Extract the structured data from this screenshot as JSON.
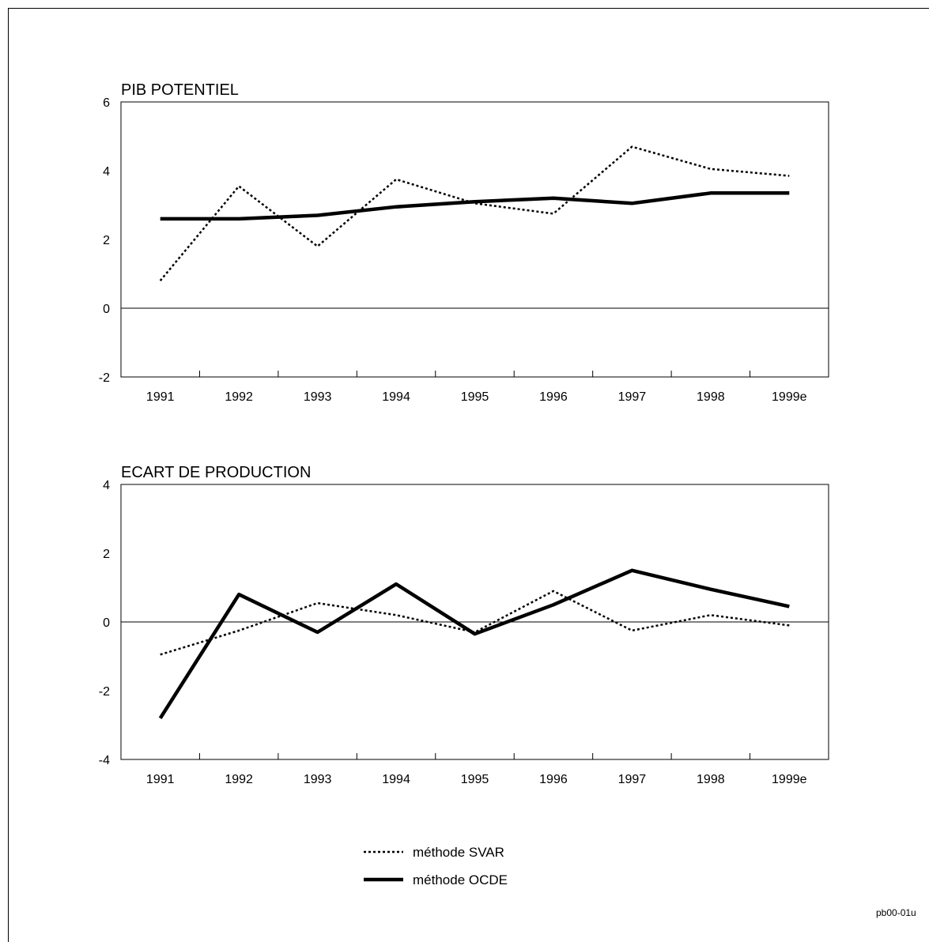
{
  "figure_code": "pb00-01u",
  "legend": [
    {
      "label": "méthode SVAR",
      "style": "dotted"
    },
    {
      "label": "méthode OCDE",
      "style": "solid"
    }
  ],
  "colors": {
    "line": "#000000",
    "background": "#ffffff"
  },
  "chart_data": [
    {
      "type": "line",
      "title": "PIB POTENTIEL",
      "xlabel": "",
      "ylabel": "",
      "categories": [
        "1991",
        "1992",
        "1993",
        "1994",
        "1995",
        "1996",
        "1997",
        "1998",
        "1999e"
      ],
      "ylim": [
        -2,
        6
      ],
      "yticks": [
        -2,
        0,
        2,
        4,
        6
      ],
      "grid": false,
      "zero_line": true,
      "series": [
        {
          "name": "méthode SVAR",
          "style": "dotted",
          "values": [
            0.8,
            3.55,
            1.8,
            3.75,
            3.05,
            2.75,
            4.7,
            4.05,
            3.85
          ]
        },
        {
          "name": "méthode OCDE",
          "style": "solid",
          "values": [
            2.6,
            2.6,
            2.7,
            2.95,
            3.1,
            3.2,
            3.05,
            3.35,
            3.35
          ]
        }
      ]
    },
    {
      "type": "line",
      "title": "ECART DE PRODUCTION",
      "xlabel": "",
      "ylabel": "",
      "categories": [
        "1991",
        "1992",
        "1993",
        "1994",
        "1995",
        "1996",
        "1997",
        "1998",
        "1999e"
      ],
      "ylim": [
        -4,
        4
      ],
      "yticks": [
        -4,
        -2,
        0,
        2,
        4
      ],
      "grid": false,
      "zero_line": true,
      "series": [
        {
          "name": "méthode SVAR",
          "style": "dotted",
          "values": [
            -0.95,
            -0.25,
            0.55,
            0.2,
            -0.3,
            0.9,
            -0.25,
            0.2,
            -0.1
          ]
        },
        {
          "name": "méthode OCDE",
          "style": "solid",
          "values": [
            -2.8,
            0.8,
            -0.3,
            1.1,
            -0.35,
            0.5,
            1.5,
            0.95,
            0.45
          ]
        }
      ]
    }
  ]
}
